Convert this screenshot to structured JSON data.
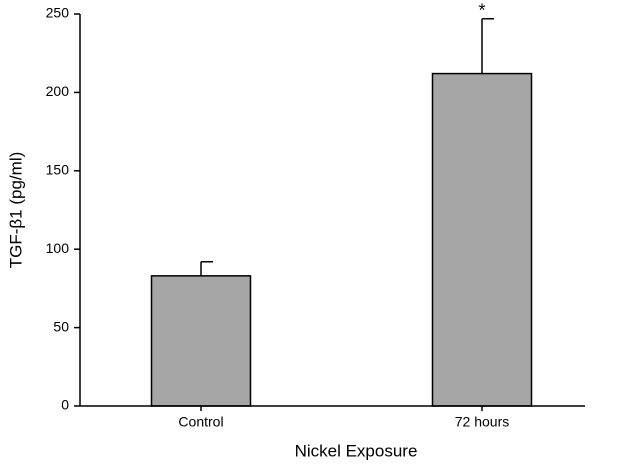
{
  "chart_data": {
    "type": "bar",
    "categories": [
      "Control",
      "72 hours"
    ],
    "values": [
      83,
      212
    ],
    "errors": [
      9,
      35
    ],
    "color": "#a6a6a6",
    "xlabel": "Nickel Exposure",
    "ylabel": "TGF-β1 (pg/ml)",
    "ylim": [
      0,
      250
    ],
    "yticks": [
      0,
      50,
      100,
      150,
      200,
      250
    ],
    "annotations": [
      {
        "category": "72 hours",
        "text": "*"
      }
    ]
  }
}
